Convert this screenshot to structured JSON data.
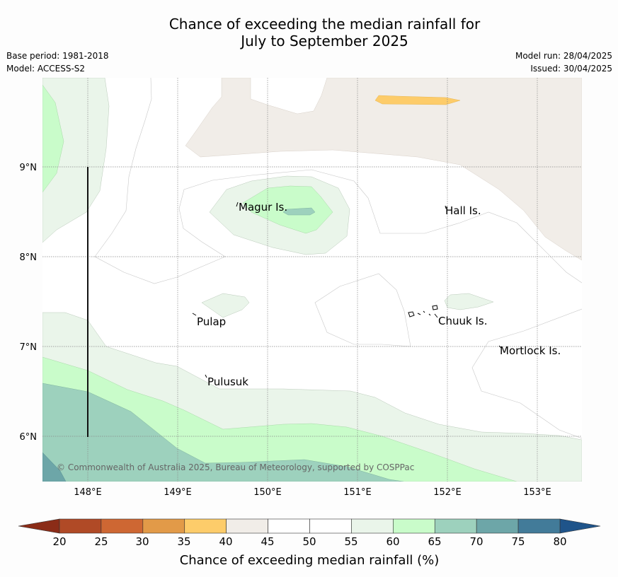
{
  "title": {
    "line1": "Chance of exceeding the median rainfall for",
    "line2": "July to September 2025"
  },
  "left_info": {
    "base_period": "Base period: 1981-2018",
    "model": "Model: ACCESS-S2"
  },
  "right_info": {
    "model_run": "Model run: 28/04/2025",
    "issued": "Issued: 30/04/2025"
  },
  "map": {
    "lat_labels": [
      "9°N",
      "8°N",
      "7°N",
      "6°N"
    ],
    "lon_labels": [
      "148°E",
      "149°E",
      "150°E",
      "151°E",
      "152°E",
      "153°E"
    ],
    "places": [
      "Magur Is.",
      "Hall Is.",
      "Pulap",
      "Chuuk Is.",
      "Mortlock Is.",
      "Pulusuk"
    ],
    "copyright": "© Commonwealth of Australia 2025, Bureau of Meteorology, supported by COSPPac"
  },
  "colorbar": {
    "ticks": [
      "20",
      "25",
      "30",
      "35",
      "40",
      "45",
      "50",
      "55",
      "60",
      "65",
      "70",
      "75",
      "80"
    ],
    "colors": [
      "#b04a26",
      "#ce6733",
      "#e29a48",
      "#fdcc6a",
      "#f1ede8",
      "#ffffff",
      "#ffffff",
      "#eaf5ea",
      "#c9fcca",
      "#9dd1bd",
      "#6da6a8",
      "#427b99"
    ],
    "under_color": "#8b2c17",
    "over_color": "#1f548a",
    "label": "Chance of exceeding median rainfall (%)"
  }
}
